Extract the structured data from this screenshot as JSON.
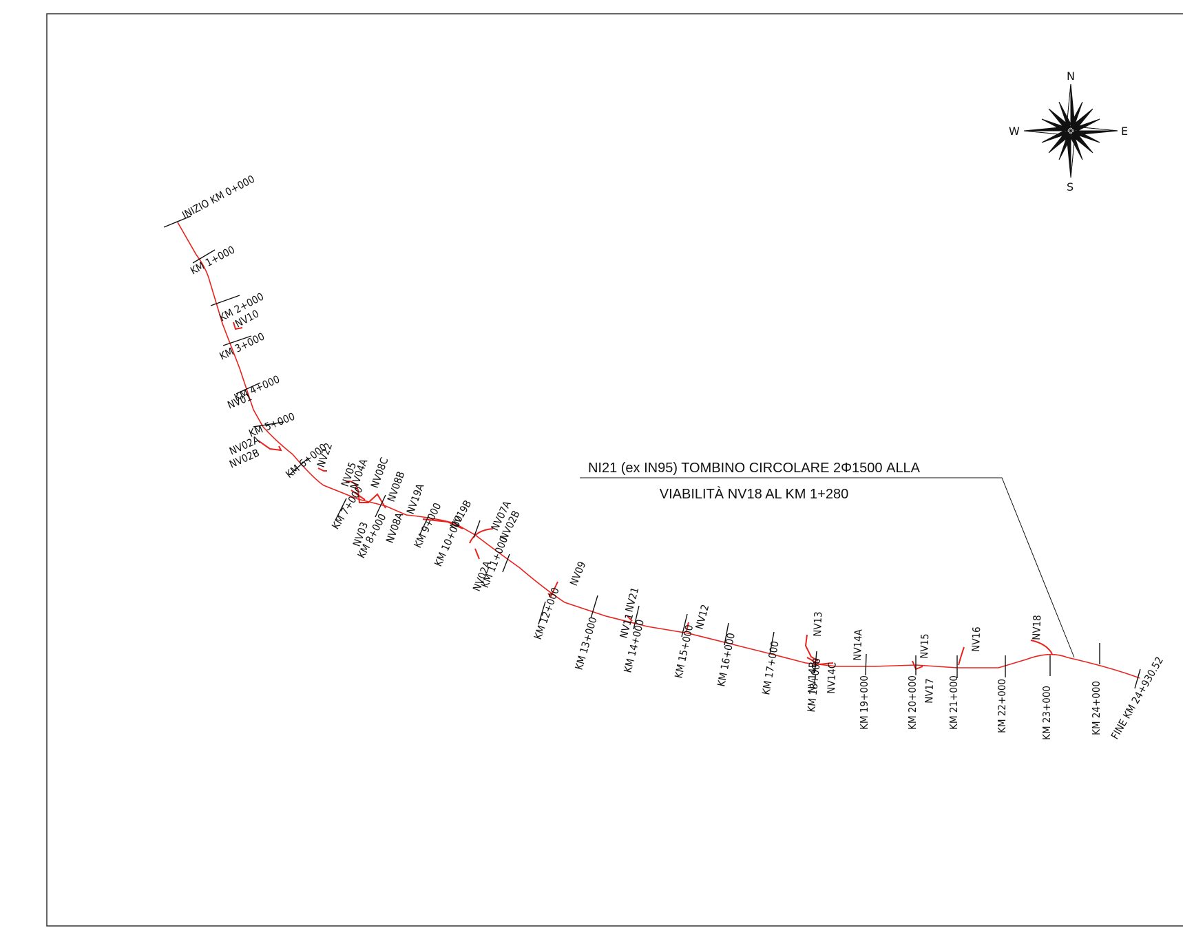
{
  "colors": {
    "route": "#e8231e",
    "ink": "#111111",
    "frame": "#333333",
    "background": "#ffffff"
  },
  "compass": {
    "icon": "compass-rose-icon",
    "n": "N",
    "s": "S",
    "e": "E",
    "w": "W"
  },
  "callout": {
    "line1": "NI21 (ex IN95) TOMBINO CIRCOLARE 2Φ1500 ALLA",
    "line2": "VIABILITÀ NV18 AL KM 1+280"
  },
  "stations": [
    "INIZIO KM 0+000",
    "KM 1+000",
    "KM 2+000",
    "KM 3+000",
    "KM 4+000",
    "KM 5+000",
    "KM 6+000",
    "KM 7+000",
    "KM 8+000",
    "KM 9+000",
    "KM 10+000",
    "KM 11+000",
    "KM 12+000",
    "KM 13+000",
    "KM 14+000",
    "KM 15+000",
    "KM 16+000",
    "KM 17+000",
    "KM 18+000",
    "KM 19+000",
    "KM 20+000",
    "KM 21+000",
    "KM 22+000",
    "KM 23+000",
    "KM 24+000",
    "FINE KM 24+930.52"
  ],
  "viabilita": [
    "NV10",
    "NV01",
    "NV02A",
    "NV02B",
    "NV22",
    "NV05",
    "NV04A",
    "NV08C",
    "NV08B",
    "NV19A",
    "NV19B",
    "NV07A",
    "NV02B",
    "NV03",
    "NV08A",
    "NV02A",
    "NV09",
    "NV21",
    "NV11",
    "NV12",
    "NV13",
    "NV14A",
    "NV14B",
    "NV14C",
    "NV15",
    "NV17",
    "NV16",
    "NV18"
  ]
}
